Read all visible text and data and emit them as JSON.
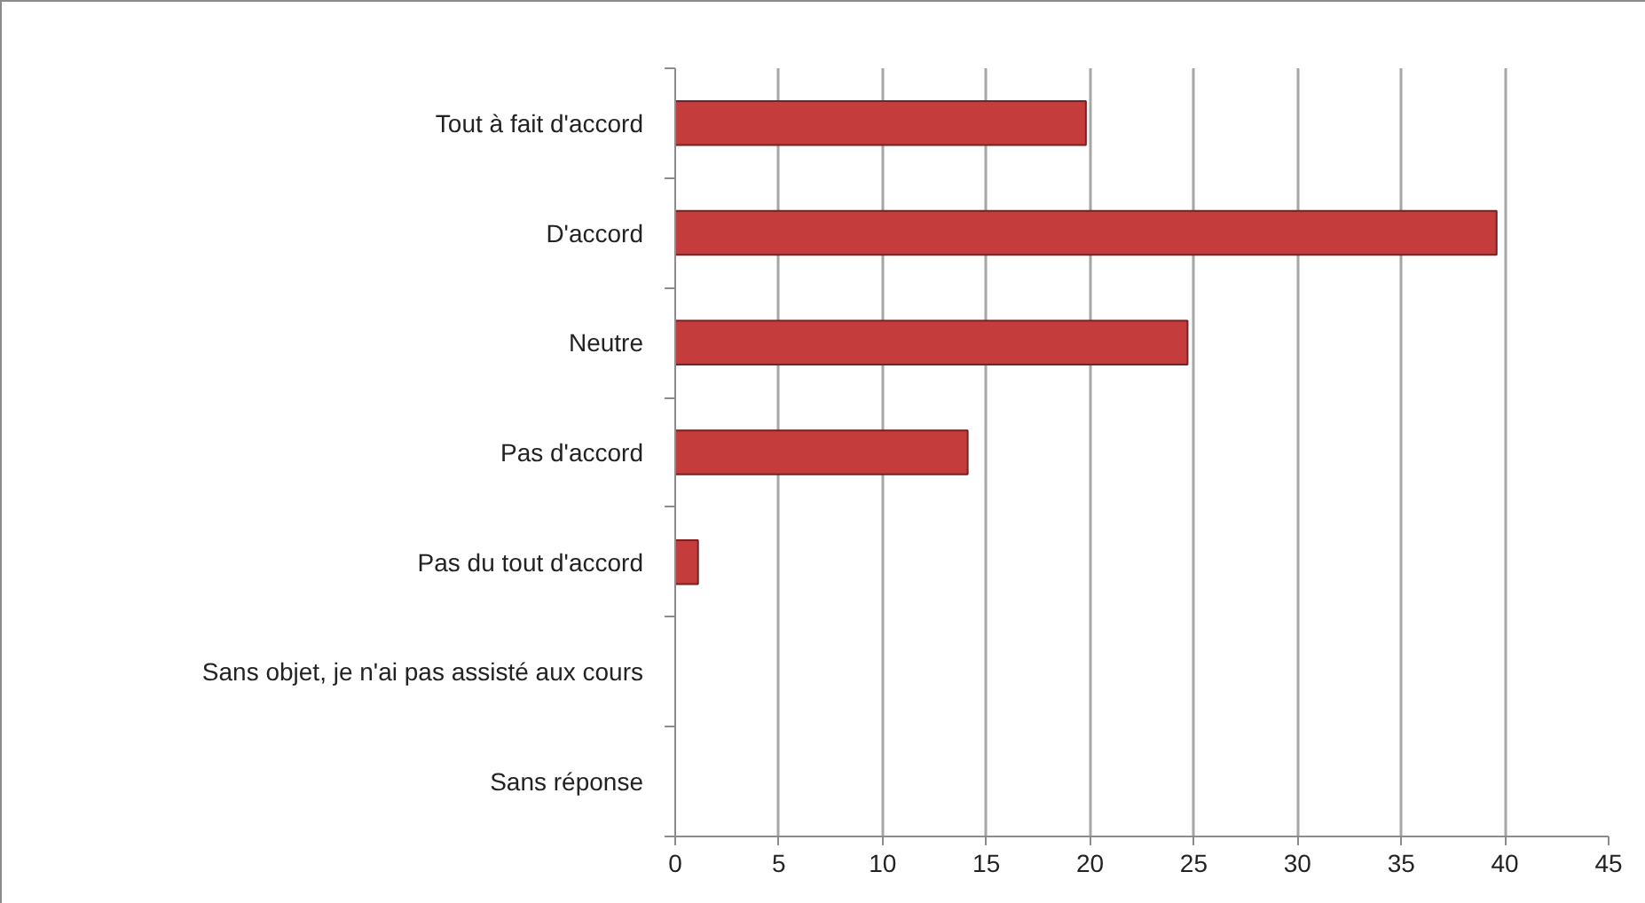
{
  "chart_data": {
    "type": "bar",
    "orientation": "horizontal",
    "categories": [
      "Tout à fait d'accord",
      "D'accord",
      "Neutre",
      "Pas d'accord",
      "Pas du tout d'accord",
      "Sans objet, je n'ai pas assisté aux cours",
      "Sans réponse"
    ],
    "values": [
      19.8,
      39.6,
      24.7,
      14.1,
      1.1,
      0,
      0
    ],
    "color": "#c43c3c",
    "xlim": [
      0,
      45
    ],
    "xticks": [
      0,
      5,
      10,
      15,
      20,
      25,
      30,
      35,
      40,
      45
    ],
    "grid": "x"
  }
}
